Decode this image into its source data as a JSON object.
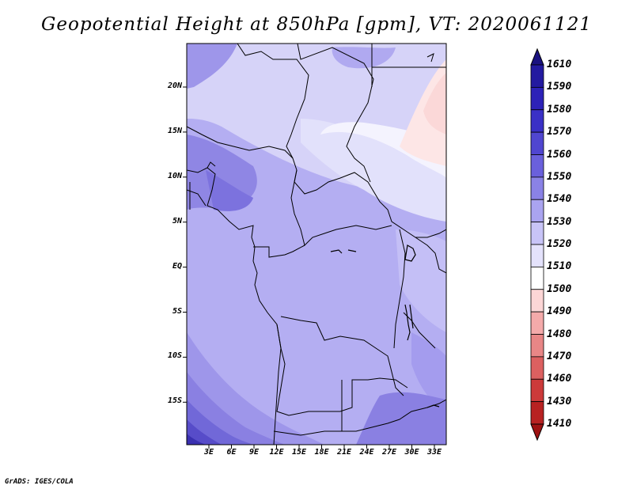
{
  "title": "Geopotential Height at 850hPa [gpm], VT: 2020061121",
  "credit": "GrADS: IGES/COLA",
  "latitude_labels": [
    "20N",
    "15N",
    "10N",
    "5N",
    "EQ",
    "5S",
    "10S",
    "15S"
  ],
  "longitude_labels": [
    "3E",
    "6E",
    "9E",
    "12E",
    "15E",
    "18E",
    "21E",
    "24E",
    "27E",
    "30E",
    "33E"
  ],
  "colorbar": {
    "levels": [
      "1610",
      "1590",
      "1580",
      "1570",
      "1560",
      "1550",
      "1540",
      "1530",
      "1520",
      "1510",
      "1500",
      "1490",
      "1480",
      "1470",
      "1460",
      "1430",
      "1410"
    ],
    "colors": [
      "#1a1280",
      "#231aa0",
      "#2d22b8",
      "#3a30c6",
      "#5046d0",
      "#6a60dc",
      "#8a82e6",
      "#aaa4f0",
      "#c8c4f7",
      "#e4e2fb",
      "#ffffff",
      "#fcd6d6",
      "#f4aaaa",
      "#e88686",
      "#dc6060",
      "#cc3a3a",
      "#b82222",
      "#9e1212"
    ]
  }
}
